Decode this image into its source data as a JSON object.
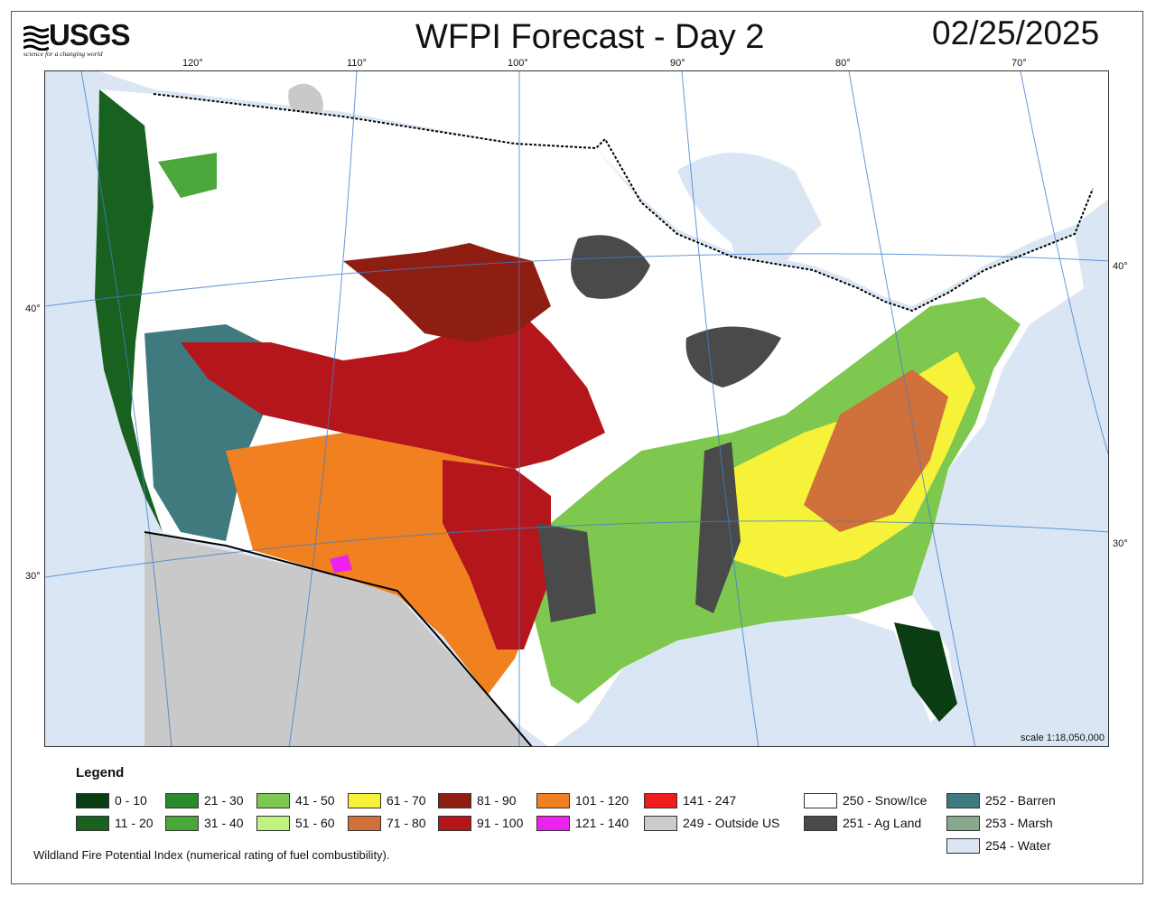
{
  "header": {
    "logo_text": "USGS",
    "logo_tagline": "science for a changing world",
    "title": "WFPI Forecast - Day 2",
    "date": "02/25/2025"
  },
  "map": {
    "icons": [
      "usgs-logo-icon"
    ],
    "longitude_labels": [
      "120°",
      "110°",
      "100°",
      "90°",
      "80°",
      "70°"
    ],
    "latitude_labels_left": [
      "40°",
      "30°"
    ],
    "latitude_labels_right": [
      "40°",
      "30°"
    ],
    "scale_text": "scale 1:18,050,000",
    "colors": {
      "water": "#dbe6f4",
      "outside_us": "#c9c9c9",
      "graticule": "#3f7fd0",
      "borders": "#000000"
    }
  },
  "legend": {
    "title": "Legend",
    "items": [
      {
        "label": "0 - 10",
        "color": "#0b3d12"
      },
      {
        "label": "11 - 20",
        "color": "#19611f"
      },
      {
        "label": "21 - 30",
        "color": "#2a8a2d"
      },
      {
        "label": "31 - 40",
        "color": "#4aa83a"
      },
      {
        "label": "41 - 50",
        "color": "#7ec850"
      },
      {
        "label": "51 - 60",
        "color": "#bff27e"
      },
      {
        "label": "61 - 70",
        "color": "#f6f23a"
      },
      {
        "label": "71 - 80",
        "color": "#d0703a"
      },
      {
        "label": "81 - 90",
        "color": "#8e1e12"
      },
      {
        "label": "91 - 100",
        "color": "#b5161b"
      },
      {
        "label": "101 - 120",
        "color": "#f08020"
      },
      {
        "label": "121 - 140",
        "color": "#ee22ee"
      },
      {
        "label": "141 - 247",
        "color": "#ee1c1c"
      },
      {
        "label": "249 - Outside US",
        "color": "#cccccc"
      },
      {
        "label": "250 - Snow/Ice",
        "color": "#ffffff"
      },
      {
        "label": "251 - Ag Land",
        "color": "#4a4a4a"
      },
      {
        "label": "252 - Barren",
        "color": "#3f7a7e"
      },
      {
        "label": "253 - Marsh",
        "color": "#88a88e"
      },
      {
        "label": "254 - Water",
        "color": "#dbe6f4"
      }
    ],
    "footnote": "Wildland Fire Potential Index (numerical rating of fuel combustibility)."
  }
}
